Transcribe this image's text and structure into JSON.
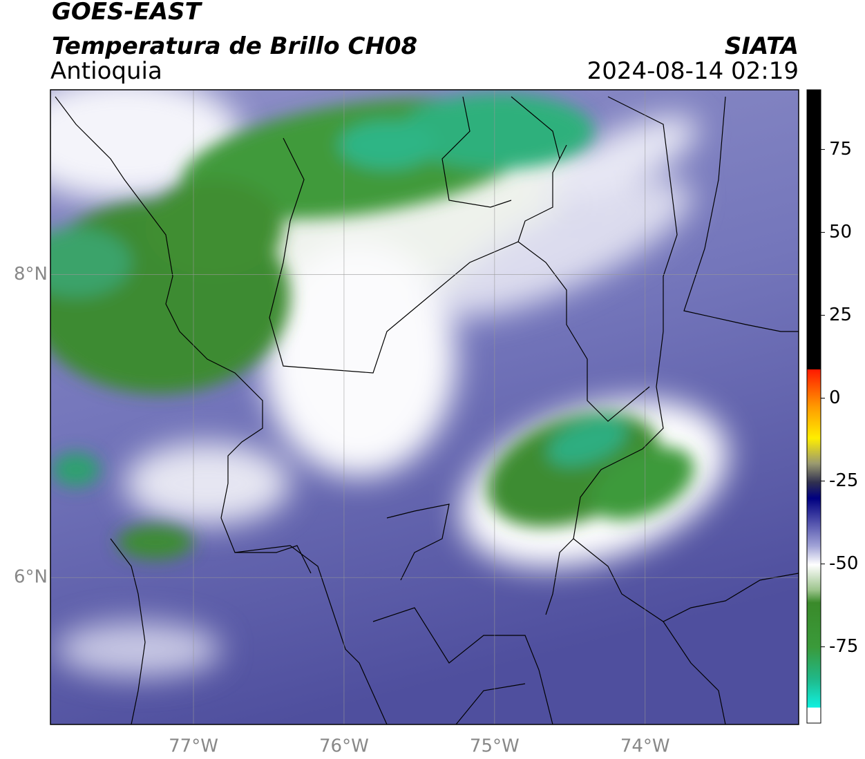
{
  "header": {
    "title": "GOES-EAST",
    "subtitle": "Temperatura de Brillo CH08",
    "region": "Antioquia",
    "source": "SIATA",
    "datetime": "2024-08-14 02:19"
  },
  "map": {
    "xlim": [
      -77.95,
      -72.98
    ],
    "ylim": [
      5.03,
      9.22
    ],
    "xticks": [
      {
        "value": -77,
        "label": "77°W"
      },
      {
        "value": -76,
        "label": "76°W"
      },
      {
        "value": -75,
        "label": "75°W"
      },
      {
        "value": -74,
        "label": "74°W"
      }
    ],
    "yticks": [
      {
        "value": 8,
        "label": "8°N"
      },
      {
        "value": 6,
        "label": "6°N"
      }
    ],
    "grid": true
  },
  "colorbar": {
    "lim": [
      -98,
      93
    ],
    "ticks": [
      75,
      50,
      25,
      0,
      -25,
      -50,
      -75
    ]
  }
}
